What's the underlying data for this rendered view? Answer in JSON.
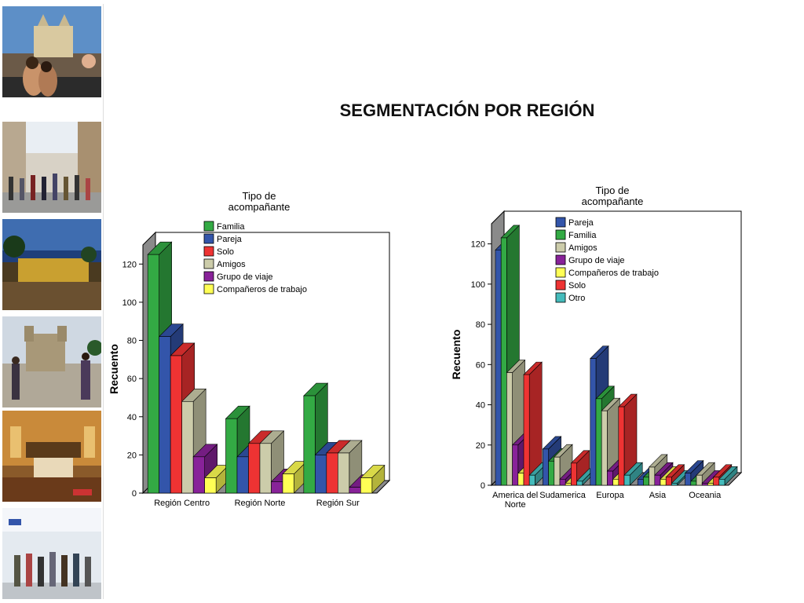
{
  "slide": {
    "title": "SEGMENTACIÓN POR REGIÓN"
  },
  "photos": [
    {
      "subject": "couple-in-pool-cathedral"
    },
    {
      "subject": "street-crowd"
    },
    {
      "subject": "terrace-evening"
    },
    {
      "subject": "church-plaza-tourists"
    },
    {
      "subject": "hotel-room"
    },
    {
      "subject": "airport-terminal"
    }
  ],
  "chart_data": [
    {
      "type": "bar",
      "style": "3d-grouped",
      "legend_title": "Tipo de\nacompañante",
      "legend_title_lines": [
        "Tipo de",
        "acompañante"
      ],
      "ylabel": "Recuento",
      "xlabel": "",
      "ylim": [
        0,
        130
      ],
      "yticks": [
        0,
        20,
        40,
        60,
        80,
        100,
        120
      ],
      "categories": [
        "Región Centro",
        "Región Norte",
        "Región Sur"
      ],
      "series": [
        {
          "name": "Familia",
          "color": "#33aa44",
          "values": [
            125,
            39,
            51
          ]
        },
        {
          "name": "Pareja",
          "color": "#3355aa",
          "values": [
            82,
            19,
            20
          ]
        },
        {
          "name": "Solo",
          "color": "#ee3333",
          "values": [
            72,
            26,
            21
          ]
        },
        {
          "name": "Amigos",
          "color": "#ccccaa",
          "values": [
            48,
            26,
            21
          ]
        },
        {
          "name": "Grupo de viaje",
          "color": "#882299",
          "values": [
            19,
            6,
            3
          ]
        },
        {
          "name": "Compañeros de trabajo",
          "color": "#ffff55",
          "values": [
            8,
            10,
            8
          ]
        }
      ]
    },
    {
      "type": "bar",
      "style": "3d-grouped",
      "legend_title": "Tipo de\nacompañante",
      "legend_title_lines": [
        "Tipo de",
        "acompañante"
      ],
      "ylabel": "Recuento",
      "xlabel": "",
      "ylim": [
        0,
        130
      ],
      "yticks": [
        0,
        20,
        40,
        60,
        80,
        100,
        120
      ],
      "categories": [
        "America del Norte",
        "Sudamerica",
        "Europa",
        "Asia",
        "Oceania"
      ],
      "category_label_lines": [
        [
          "America del",
          "Norte"
        ],
        [
          "Sudamerica"
        ],
        [
          "Europa"
        ],
        [
          "Asia"
        ],
        [
          "Oceania"
        ]
      ],
      "series": [
        {
          "name": "Pareja",
          "color": "#3355aa",
          "values": [
            117,
            18,
            63,
            3,
            6
          ]
        },
        {
          "name": "Familia",
          "color": "#33aa44",
          "values": [
            123,
            12,
            43,
            4,
            2
          ]
        },
        {
          "name": "Amigos",
          "color": "#ccccaa",
          "values": [
            56,
            14,
            37,
            9,
            5
          ]
        },
        {
          "name": "Grupo de viaje",
          "color": "#882299",
          "values": [
            20,
            3,
            7,
            5,
            1
          ]
        },
        {
          "name": "Compañeros de trabajo",
          "color": "#ffff55",
          "values": [
            6,
            1,
            3,
            3,
            1
          ]
        },
        {
          "name": "Solo",
          "color": "#ee3333",
          "values": [
            55,
            11,
            39,
            4,
            4
          ]
        },
        {
          "name": "Otro",
          "color": "#44bbbb",
          "values": [
            5,
            2,
            5,
            1,
            3
          ]
        }
      ]
    }
  ]
}
